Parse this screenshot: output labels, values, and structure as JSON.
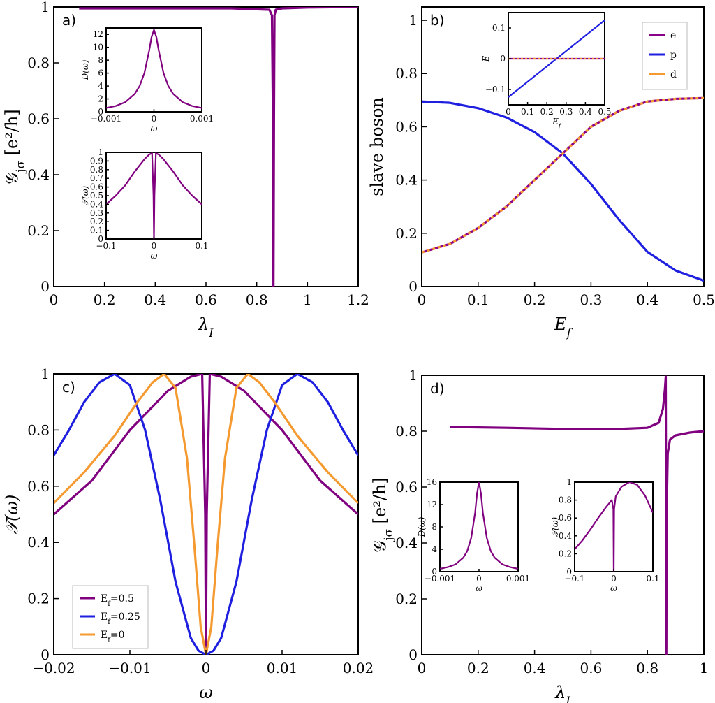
{
  "colors": {
    "purple": "#800080",
    "blue": "#1f1fe0",
    "orange": "#f59a30",
    "e": "#8b008b"
  },
  "chart_data": [
    {
      "id": "a",
      "panel_label": "a)",
      "type": "line",
      "xlabel": "λ_I",
      "ylabel": "𝒢_jσ [e²/h]",
      "xlim": [
        0,
        1.2
      ],
      "ylim": [
        0,
        1
      ],
      "xticks": [
        "0",
        "0.2",
        "0.4",
        "0.6",
        "0.8",
        "1",
        "1.2"
      ],
      "yticks": [
        "0",
        "0.2",
        "0.4",
        "0.6",
        "0.8",
        "1"
      ],
      "series": [
        {
          "color": "purple",
          "x": [
            0.1,
            0.3,
            0.5,
            0.7,
            0.85,
            0.86,
            0.864,
            0.866,
            0.868,
            0.87,
            0.875,
            0.9,
            1.0,
            1.2
          ],
          "y": [
            0.995,
            0.995,
            0.995,
            0.995,
            0.99,
            0.97,
            0.6,
            0.0,
            0.6,
            0.97,
            0.99,
            0.995,
            0.998,
            1.0
          ]
        }
      ],
      "insets": [
        {
          "type": "line",
          "xlabel": "ω",
          "ylabel": "D(ω)",
          "xlim": [
            -0.001,
            0.001
          ],
          "ylim": [
            0,
            13
          ],
          "xticks": [
            "−0.001",
            "0",
            "0.001"
          ],
          "yticks": [
            "0",
            "2",
            "4",
            "6",
            "8",
            "10",
            "12"
          ],
          "series": [
            {
              "color": "purple",
              "x": [
                -0.001,
                -0.0008,
                -0.0006,
                -0.0004,
                -0.0003,
                -0.0002,
                -0.0001,
                -5e-05,
                0,
                5e-05,
                0.0001,
                0.0002,
                0.0003,
                0.0004,
                0.0006,
                0.0008,
                0.001
              ],
              "y": [
                0.6,
                0.9,
                1.5,
                2.8,
                4.0,
                6.0,
                9.5,
                11.6,
                12.7,
                11.6,
                9.5,
                6.0,
                4.0,
                2.8,
                1.5,
                0.9,
                0.6
              ]
            }
          ]
        },
        {
          "type": "line",
          "xlabel": "ω",
          "ylabel": "𝒯(ω)",
          "xlim": [
            -0.1,
            0.1
          ],
          "ylim": [
            0,
            1
          ],
          "xticks": [
            "−0.1",
            "0",
            "0.1"
          ],
          "yticks": [
            "0",
            "0.1",
            "0.2",
            "0.3",
            "0.4",
            "0.5",
            "0.6",
            "0.7",
            "0.8",
            "0.9",
            "1"
          ],
          "series": [
            {
              "color": "purple",
              "x": [
                -0.1,
                -0.08,
                -0.06,
                -0.04,
                -0.02,
                -0.01,
                -0.004,
                -0.001,
                0,
                0.001,
                0.004,
                0.01,
                0.02,
                0.04,
                0.06,
                0.08,
                0.1
              ],
              "y": [
                0.4,
                0.5,
                0.62,
                0.78,
                0.92,
                0.975,
                0.99,
                0.5,
                0.0,
                0.5,
                0.99,
                0.975,
                0.92,
                0.78,
                0.62,
                0.5,
                0.4
              ]
            }
          ]
        }
      ]
    },
    {
      "id": "b",
      "panel_label": "b)",
      "type": "line",
      "xlabel": "E_f",
      "ylabel": "slave boson",
      "xlim": [
        0,
        0.5
      ],
      "ylim": [
        0,
        1.05
      ],
      "xticks": [
        "0",
        "0.1",
        "0.2",
        "0.3",
        "0.4",
        "0.5"
      ],
      "yticks": [
        "0",
        "0.2",
        "0.4",
        "0.6",
        "0.8",
        "1"
      ],
      "legend": {
        "position": "top-right",
        "entries": [
          {
            "name": "e",
            "color": "e"
          },
          {
            "name": "p",
            "color": "blue"
          },
          {
            "name": "d",
            "color": "orange"
          }
        ]
      },
      "series": [
        {
          "name": "p",
          "color": "blue",
          "x": [
            0,
            0.05,
            0.1,
            0.15,
            0.2,
            0.25,
            0.3,
            0.35,
            0.4,
            0.45,
            0.5
          ],
          "y": [
            0.695,
            0.69,
            0.67,
            0.635,
            0.58,
            0.5,
            0.385,
            0.25,
            0.13,
            0.06,
            0.022
          ]
        },
        {
          "name": "e",
          "color": "e",
          "x": [
            0,
            0.05,
            0.1,
            0.15,
            0.2,
            0.25,
            0.3,
            0.35,
            0.4,
            0.45,
            0.5
          ],
          "y": [
            0.128,
            0.16,
            0.22,
            0.3,
            0.4,
            0.5,
            0.6,
            0.66,
            0.695,
            0.705,
            0.708
          ]
        },
        {
          "name": "d",
          "color": "orange",
          "dashed": true,
          "x": [
            0,
            0.05,
            0.1,
            0.15,
            0.2,
            0.25,
            0.3,
            0.35,
            0.4,
            0.45,
            0.5
          ],
          "y": [
            0.128,
            0.16,
            0.22,
            0.3,
            0.4,
            0.5,
            0.6,
            0.66,
            0.695,
            0.705,
            0.708
          ]
        }
      ],
      "insets": [
        {
          "type": "line",
          "xlabel": "E_f",
          "ylabel": "E",
          "xlim": [
            0,
            0.5
          ],
          "ylim": [
            -0.15,
            0.15
          ],
          "xticks": [
            "0",
            "0.1",
            "0.2",
            "0.3",
            "0.4",
            "0.5"
          ],
          "yticks": [
            "−0.1",
            "0",
            "0.1"
          ],
          "series": [
            {
              "color": "blue",
              "x": [
                0,
                0.5
              ],
              "y": [
                -0.125,
                0.125
              ]
            },
            {
              "color": "e",
              "x": [
                0,
                0.5
              ],
              "y": [
                0,
                0
              ]
            },
            {
              "color": "orange",
              "dashed": true,
              "x": [
                0,
                0.5
              ],
              "y": [
                0,
                0
              ]
            }
          ]
        }
      ]
    },
    {
      "id": "c",
      "panel_label": "c)",
      "type": "line",
      "xlabel": "ω",
      "ylabel": "𝒯(ω)",
      "xlim": [
        -0.02,
        0.02
      ],
      "ylim": [
        0,
        1
      ],
      "xticks": [
        "−0.02",
        "−0.01",
        "0",
        "0.01",
        "0.02"
      ],
      "yticks": [
        "0",
        "0.2",
        "0.4",
        "0.6",
        "0.8",
        "1"
      ],
      "legend": {
        "position": "bottom-left",
        "entries": [
          {
            "name": "E_f=0.5",
            "color": "purple"
          },
          {
            "name": "E_f=0.25",
            "color": "blue"
          },
          {
            "name": "E_f=0",
            "color": "orange"
          }
        ]
      },
      "series": [
        {
          "name": "E_f=0.5",
          "color": "purple",
          "x": [
            -0.02,
            -0.015,
            -0.01,
            -0.005,
            -0.002,
            -0.0005,
            -0.0001,
            0,
            0.0001,
            0.0005,
            0.002,
            0.005,
            0.01,
            0.015,
            0.02
          ],
          "y": [
            0.5,
            0.62,
            0.8,
            0.94,
            0.99,
            1.0,
            0.5,
            0.0,
            0.5,
            1.0,
            0.99,
            0.94,
            0.8,
            0.62,
            0.5
          ]
        },
        {
          "name": "E_f=0.25",
          "color": "blue",
          "x": [
            -0.02,
            -0.018,
            -0.016,
            -0.014,
            -0.012,
            -0.01,
            -0.008,
            -0.006,
            -0.004,
            -0.002,
            -0.001,
            0,
            0.001,
            0.002,
            0.004,
            0.006,
            0.008,
            0.01,
            0.012,
            0.014,
            0.016,
            0.018,
            0.02
          ],
          "y": [
            0.71,
            0.8,
            0.9,
            0.97,
            1.0,
            0.96,
            0.8,
            0.55,
            0.26,
            0.06,
            0.015,
            0.0,
            0.015,
            0.06,
            0.26,
            0.55,
            0.8,
            0.96,
            1.0,
            0.97,
            0.9,
            0.8,
            0.71
          ]
        },
        {
          "name": "E_f=0",
          "color": "orange",
          "x": [
            -0.02,
            -0.016,
            -0.012,
            -0.009,
            -0.007,
            -0.0055,
            -0.004,
            -0.0025,
            -0.0015,
            -0.0007,
            0,
            0.0007,
            0.0015,
            0.0025,
            0.004,
            0.0055,
            0.007,
            0.009,
            0.012,
            0.016,
            0.02
          ],
          "y": [
            0.54,
            0.65,
            0.78,
            0.9,
            0.97,
            1.0,
            0.95,
            0.7,
            0.38,
            0.1,
            0.0,
            0.1,
            0.38,
            0.7,
            0.95,
            1.0,
            0.97,
            0.9,
            0.78,
            0.65,
            0.54
          ]
        }
      ]
    },
    {
      "id": "d",
      "panel_label": "d)",
      "type": "line",
      "xlabel": "λ_I",
      "ylabel": "𝒢_jσ [e²/h]",
      "xlim": [
        0,
        1
      ],
      "ylim": [
        0,
        1
      ],
      "xticks": [
        "0",
        "0.2",
        "0.4",
        "0.6",
        "0.8",
        "1"
      ],
      "yticks": [
        "0",
        "0.2",
        "0.4",
        "0.6",
        "0.8",
        "1"
      ],
      "series": [
        {
          "color": "purple",
          "x": [
            0.1,
            0.3,
            0.5,
            0.7,
            0.8,
            0.84,
            0.855,
            0.862,
            0.865,
            0.866,
            0.867,
            0.868,
            0.872,
            0.88,
            0.9,
            0.95,
            1.0
          ],
          "y": [
            0.815,
            0.812,
            0.808,
            0.808,
            0.812,
            0.83,
            0.88,
            0.95,
            0.995,
            0.5,
            0.0,
            0.5,
            0.72,
            0.77,
            0.785,
            0.795,
            0.8
          ]
        }
      ],
      "insets": [
        {
          "type": "line",
          "xlabel": "ω",
          "ylabel": "D(ω)",
          "xlim": [
            -0.001,
            0.001
          ],
          "ylim": [
            0,
            16
          ],
          "xticks": [
            "−0.001",
            "0",
            "0.001"
          ],
          "yticks": [
            "0",
            "4",
            "8",
            "12",
            "16"
          ],
          "series": [
            {
              "color": "purple",
              "x": [
                -0.001,
                -0.0008,
                -0.0006,
                -0.0004,
                -0.0003,
                -0.0002,
                -0.0001,
                -5e-05,
                0,
                5e-05,
                0.0001,
                0.0002,
                0.0003,
                0.0004,
                0.0006,
                0.0008,
                0.001
              ],
              "y": [
                0.5,
                0.8,
                1.3,
                2.5,
                3.7,
                6.0,
                10.5,
                14.0,
                16.0,
                14.0,
                10.5,
                6.0,
                3.7,
                2.5,
                1.3,
                0.8,
                0.5
              ]
            }
          ]
        },
        {
          "type": "line",
          "xlabel": "ω",
          "ylabel": "𝒯(ω)",
          "xlim": [
            -0.1,
            0.1
          ],
          "ylim": [
            0,
            1
          ],
          "xticks": [
            "−0.1",
            "0",
            "0.1"
          ],
          "yticks": [
            "0",
            "0.2",
            "0.4",
            "0.6",
            "0.8",
            "1"
          ],
          "series": [
            {
              "color": "purple",
              "x": [
                -0.1,
                -0.08,
                -0.06,
                -0.04,
                -0.02,
                -0.005,
                -0.001,
                0,
                0.001,
                0.005,
                0.02,
                0.04,
                0.06,
                0.08,
                0.1
              ],
              "y": [
                0.25,
                0.35,
                0.47,
                0.6,
                0.72,
                0.8,
                0.7,
                0.0,
                0.7,
                0.84,
                0.95,
                1.0,
                0.97,
                0.85,
                0.66
              ]
            }
          ]
        }
      ]
    }
  ]
}
